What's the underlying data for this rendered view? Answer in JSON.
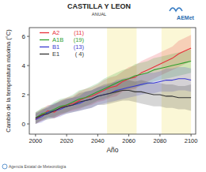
{
  "chart_data": {
    "type": "line",
    "title": "CASTILLA Y LEON",
    "subtitle": "ANUAL",
    "x_label": "Año",
    "y_label": "Cambio de la temperatura máxima (°C)",
    "footer": "Agencia Estatal de Meteorología",
    "logo_text": "AEMet",
    "legend": "top-left",
    "xlim": [
      1996,
      2103
    ],
    "ylim": [
      -0.7,
      6.6
    ],
    "xticks": [
      2000,
      2020,
      2040,
      2060,
      2080,
      2100
    ],
    "yticks": [
      0,
      2,
      4,
      6
    ],
    "shaded_periods": [
      [
        2046,
        2065
      ],
      [
        2081,
        2100
      ]
    ],
    "x": [
      2000,
      2004,
      2008,
      2012,
      2016,
      2020,
      2024,
      2028,
      2032,
      2036,
      2040,
      2044,
      2048,
      2052,
      2056,
      2060,
      2064,
      2068,
      2072,
      2076,
      2080,
      2084,
      2088,
      2092,
      2096,
      2100
    ],
    "series": [
      {
        "name": "A2",
        "count_label": "(11)",
        "color": "#e8303a",
        "values": [
          0.3,
          0.6,
          0.9,
          0.8,
          1.1,
          1.3,
          1.4,
          1.6,
          1.8,
          1.9,
          2.1,
          2.3,
          2.5,
          2.6,
          2.9,
          3.1,
          3.2,
          3.5,
          3.7,
          3.9,
          4.1,
          4.3,
          4.5,
          4.8,
          5.0,
          5.2
        ],
        "lower": [
          0.0,
          0.2,
          0.5,
          0.4,
          0.6,
          0.8,
          0.9,
          1.0,
          1.2,
          1.3,
          1.5,
          1.6,
          1.8,
          1.9,
          2.2,
          2.3,
          2.4,
          2.7,
          2.9,
          3.1,
          3.3,
          3.5,
          3.7,
          3.9,
          4.1,
          4.3
        ],
        "upper": [
          0.7,
          1.0,
          1.3,
          1.3,
          1.6,
          1.8,
          1.9,
          2.2,
          2.4,
          2.5,
          2.7,
          3.0,
          3.2,
          3.3,
          3.6,
          3.9,
          4.0,
          4.3,
          4.5,
          4.7,
          4.9,
          5.1,
          5.3,
          5.7,
          5.9,
          6.1
        ]
      },
      {
        "name": "A1B",
        "count_label": "(19)",
        "color": "#2ea02c",
        "values": [
          0.4,
          0.7,
          0.8,
          1.0,
          1.2,
          1.3,
          1.5,
          1.7,
          1.8,
          2.0,
          2.2,
          2.4,
          2.6,
          2.8,
          3.0,
          3.1,
          3.3,
          3.4,
          3.5,
          3.7,
          3.8,
          3.9,
          4.0,
          4.1,
          4.2,
          4.3
        ],
        "lower": [
          0.0,
          0.3,
          0.4,
          0.5,
          0.7,
          0.8,
          1.0,
          1.1,
          1.2,
          1.4,
          1.6,
          1.7,
          1.9,
          2.1,
          2.3,
          2.4,
          2.5,
          2.6,
          2.7,
          2.9,
          3.0,
          3.1,
          3.2,
          3.3,
          3.4,
          3.5
        ],
        "upper": [
          0.8,
          1.1,
          1.2,
          1.5,
          1.7,
          1.8,
          2.0,
          2.3,
          2.4,
          2.6,
          2.8,
          3.1,
          3.3,
          3.5,
          3.7,
          3.8,
          4.1,
          4.2,
          4.3,
          4.5,
          4.6,
          4.7,
          4.8,
          4.9,
          5.0,
          5.1
        ]
      },
      {
        "name": "B1",
        "count_label": "(13)",
        "color": "#3a3ad0",
        "values": [
          0.3,
          0.5,
          0.8,
          0.9,
          1.0,
          1.2,
          1.3,
          1.4,
          1.6,
          1.7,
          1.9,
          2.0,
          2.1,
          2.3,
          2.4,
          2.5,
          2.6,
          2.7,
          2.8,
          2.8,
          2.9,
          3.0,
          3.0,
          3.1,
          3.1,
          3.0
        ],
        "lower": [
          0.0,
          0.1,
          0.4,
          0.4,
          0.5,
          0.7,
          0.8,
          0.9,
          1.0,
          1.1,
          1.3,
          1.4,
          1.5,
          1.6,
          1.7,
          1.8,
          1.9,
          2.0,
          2.1,
          2.1,
          2.2,
          2.2,
          2.2,
          2.3,
          2.3,
          2.2
        ],
        "upper": [
          0.7,
          0.9,
          1.2,
          1.4,
          1.5,
          1.7,
          1.8,
          1.9,
          2.2,
          2.3,
          2.5,
          2.6,
          2.7,
          3.0,
          3.1,
          3.2,
          3.3,
          3.4,
          3.5,
          3.5,
          3.6,
          3.8,
          3.8,
          3.9,
          3.9,
          3.8
        ]
      },
      {
        "name": "E1",
        "count_label": "( 4)",
        "color": "#333333",
        "values": [
          0.4,
          0.6,
          0.7,
          0.9,
          1.1,
          1.2,
          1.3,
          1.5,
          1.6,
          1.7,
          1.9,
          2.0,
          2.1,
          2.2,
          2.3,
          2.3,
          2.2,
          2.2,
          2.1,
          2.0,
          2.0,
          1.9,
          1.9,
          1.8,
          1.8,
          1.8
        ],
        "lower": [
          0.0,
          0.2,
          0.3,
          0.4,
          0.6,
          0.7,
          0.8,
          0.9,
          1.0,
          1.1,
          1.3,
          1.3,
          1.4,
          1.5,
          1.6,
          1.6,
          1.5,
          1.4,
          1.3,
          1.2,
          1.2,
          1.1,
          1.1,
          1.0,
          1.0,
          0.9
        ],
        "upper": [
          0.8,
          1.0,
          1.1,
          1.4,
          1.6,
          1.7,
          1.8,
          2.1,
          2.2,
          2.3,
          2.5,
          2.7,
          2.8,
          2.9,
          3.0,
          3.0,
          2.9,
          3.0,
          2.9,
          2.8,
          2.8,
          2.7,
          2.7,
          2.6,
          2.6,
          2.7
        ]
      }
    ]
  }
}
